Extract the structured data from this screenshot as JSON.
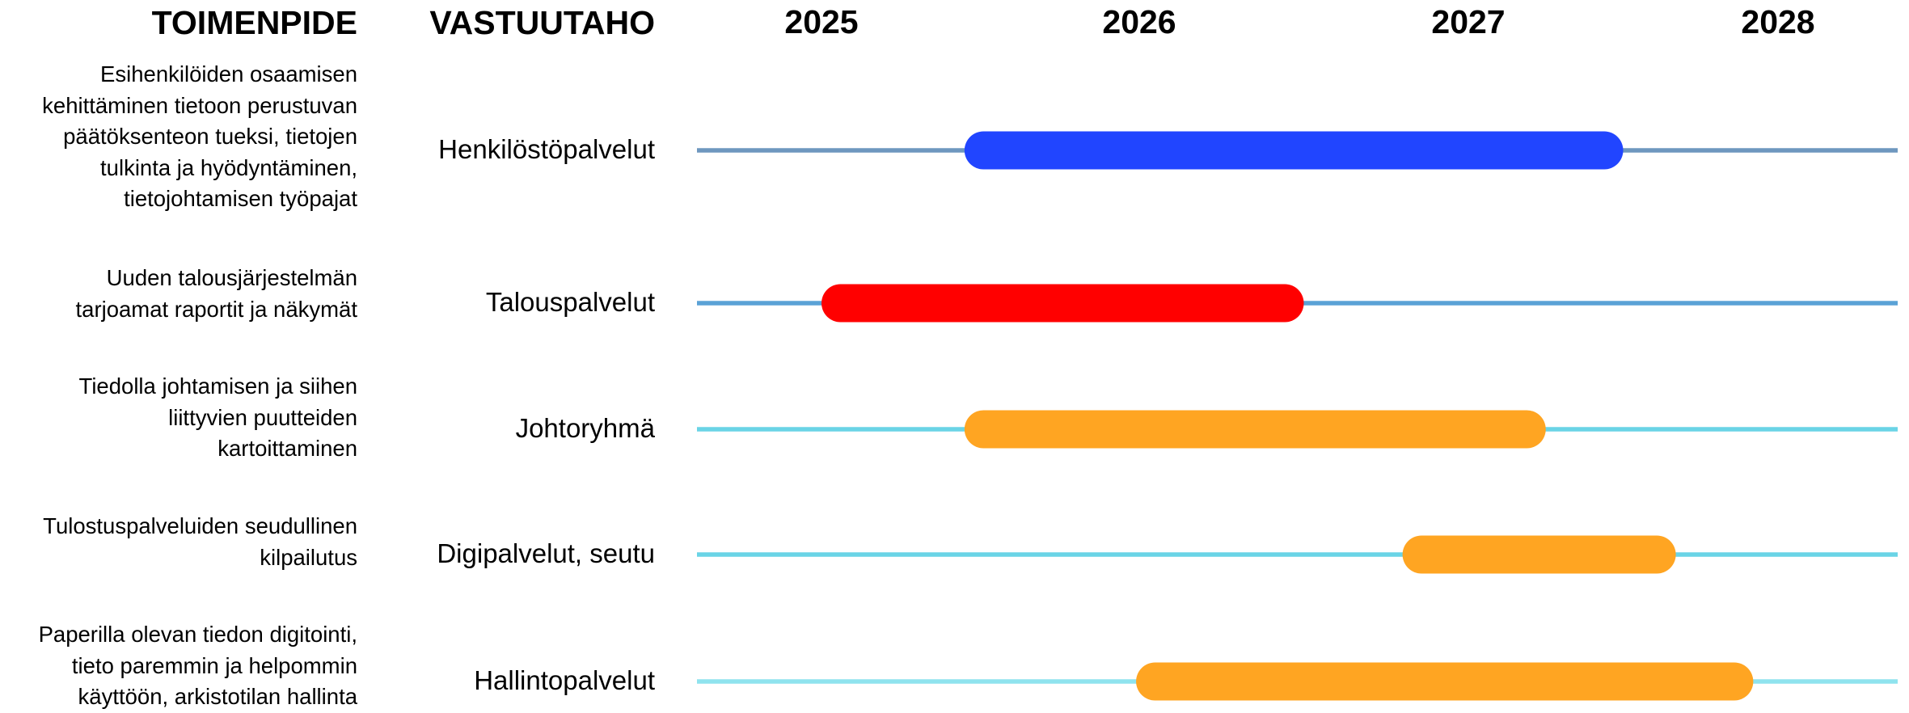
{
  "headers": {
    "action": "TOIMENPIDE",
    "responsible": "VASTUUTAHO"
  },
  "chart_data": {
    "type": "gantt",
    "years": [
      "2025",
      "2026",
      "2027",
      "2028"
    ],
    "rows": [
      {
        "task": "Esihenkilöiden osaamisen kehittäminen tietoon perustuvan päätöksenteon tueksi, tietojen tulkinta ja hyödyntäminen, tietojohtamisen työpajat",
        "task_lines": [
          "Esihenkilöiden osaamisen",
          "kehittäminen tietoon perustuvan",
          "päätöksenteon tueksi, tietojen",
          "tulkinta ja hyödyntäminen,",
          "tietojohtamisen työpajat"
        ],
        "responsible": "Henkilöstöpalvelut",
        "start": 2025.45,
        "end": 2027.5,
        "bar_color": "#2145ff",
        "line_color": "#6e97bf"
      },
      {
        "task": "Uuden talousjärjestelmän tarjoamat raportit ja näkymät",
        "task_lines": [
          "Uuden talousjärjestelmän",
          "tarjoamat raportit ja näkymät"
        ],
        "responsible": "Talouspalvelut",
        "start": 2025.0,
        "end": 2026.5,
        "bar_color": "#ff0000",
        "line_color": "#5aa2d6"
      },
      {
        "task": "Tiedolla johtamisen ja siihen liittyvien puutteiden kartoittaminen",
        "task_lines": [
          "Tiedolla johtamisen ja siihen",
          "liittyvien puutteiden",
          "kartoittaminen"
        ],
        "responsible": "Johtoryhmä",
        "start": 2025.45,
        "end": 2027.25,
        "bar_color": "#ffa522",
        "line_color": "#6ad4e6"
      },
      {
        "task": "Tulostuspalveluiden seudullinen kilpailutus",
        "task_lines": [
          "Tulostuspalveluiden seudullinen",
          "kilpailutus"
        ],
        "responsible": "Digipalvelut, seutu",
        "start": 2026.8,
        "end": 2027.67,
        "bar_color": "#ffa522",
        "line_color": "#6ad4e6"
      },
      {
        "task": "Paperilla olevan tiedon digitointi, tieto paremmin ja helpommin käyttöön, arkistotilan hallinta",
        "task_lines": [
          "Paperilla olevan tiedon digitointi,",
          "tieto paremmin ja helpommin",
          "käyttöön, arkistotilan hallinta"
        ],
        "responsible": "Hallintopalvelut",
        "start": 2025.99,
        "end": 2027.92,
        "bar_color": "#ffa522",
        "line_color": "#8fe3ee"
      }
    ]
  }
}
